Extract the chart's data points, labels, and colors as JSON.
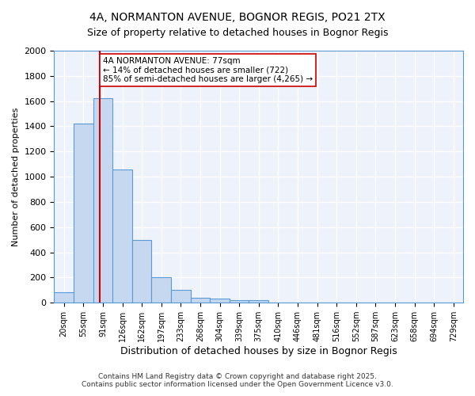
{
  "title1": "4A, NORMANTON AVENUE, BOGNOR REGIS, PO21 2TX",
  "title2": "Size of property relative to detached houses in Bognor Regis",
  "xlabel": "Distribution of detached houses by size in Bognor Regis",
  "ylabel": "Number of detached properties",
  "bar_values": [
    80,
    1420,
    1620,
    1060,
    500,
    205,
    105,
    40,
    30,
    20,
    20,
    0,
    0,
    0,
    0,
    0,
    0,
    0,
    0,
    0,
    0
  ],
  "categories": [
    "20sqm",
    "55sqm",
    "91sqm",
    "126sqm",
    "162sqm",
    "197sqm",
    "233sqm",
    "268sqm",
    "304sqm",
    "339sqm",
    "375sqm",
    "410sqm",
    "446sqm",
    "481sqm",
    "516sqm",
    "552sqm",
    "587sqm",
    "623sqm",
    "658sqm",
    "694sqm",
    "729sqm"
  ],
  "bar_color": "#c5d8f0",
  "bar_edge_color": "#5b9bd5",
  "bg_color": "#eef2fb",
  "grid_color": "#ffffff",
  "vline_x": 1.85,
  "vline_color": "#cc0000",
  "annotation_text": "4A NORMANTON AVENUE: 77sqm\n← 14% of detached houses are smaller (722)\n85% of semi-detached houses are larger (4,265) →",
  "annotation_box_color": "#ffffff",
  "annotation_box_edge": "#cc0000",
  "ylim": [
    0,
    2000
  ],
  "yticks": [
    0,
    200,
    400,
    600,
    800,
    1000,
    1200,
    1400,
    1600,
    1800,
    2000
  ],
  "footer1": "Contains HM Land Registry data © Crown copyright and database right 2025.",
  "footer2": "Contains public sector information licensed under the Open Government Licence v3.0."
}
